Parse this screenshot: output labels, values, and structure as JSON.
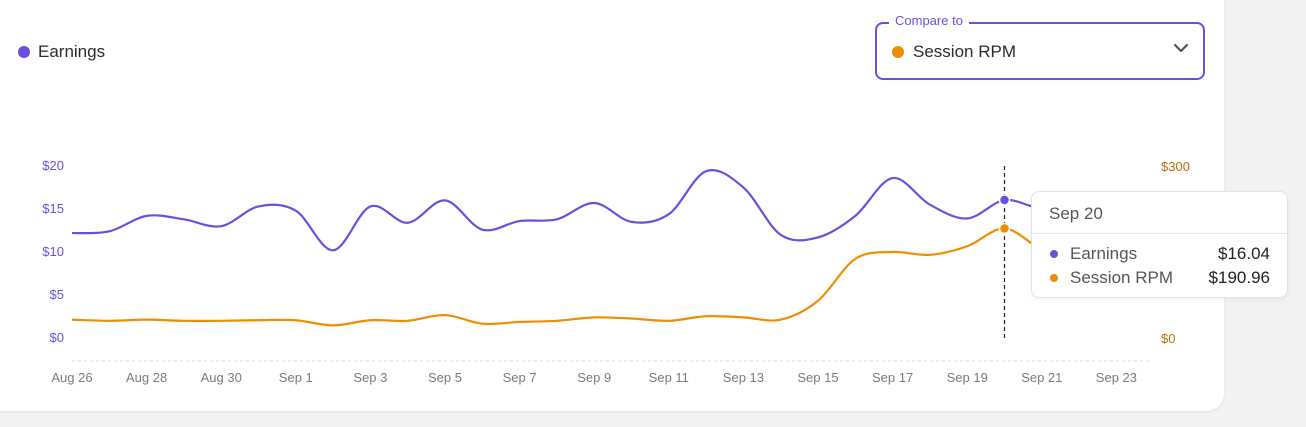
{
  "legend": {
    "label": "Earnings",
    "color": "#6c4ee0"
  },
  "compare": {
    "title": "Compare to",
    "selected": "Session RPM",
    "selected_color": "#f08c00",
    "icon": "chevron-down-icon"
  },
  "chart_data": {
    "type": "line",
    "x": [
      "Aug 26",
      "Aug 27",
      "Aug 28",
      "Aug 29",
      "Aug 30",
      "Aug 31",
      "Sep 1",
      "Sep 2",
      "Sep 3",
      "Sep 4",
      "Sep 5",
      "Sep 6",
      "Sep 7",
      "Sep 8",
      "Sep 9",
      "Sep 10",
      "Sep 11",
      "Sep 12",
      "Sep 13",
      "Sep 14",
      "Sep 15",
      "Sep 16",
      "Sep 17",
      "Sep 18",
      "Sep 19",
      "Sep 20",
      "Sep 21",
      "Sep 22"
    ],
    "x_tick_labels": [
      "Aug 26",
      "Aug 28",
      "Aug 30",
      "Sep 1",
      "Sep 3",
      "Sep 5",
      "Sep 7",
      "Sep 9",
      "Sep 11",
      "Sep 13",
      "Sep 15",
      "Sep 17",
      "Sep 19",
      "Sep 21",
      "Sep 23"
    ],
    "y_left": {
      "ticks": [
        "$0",
        "$5",
        "$10",
        "$15",
        "$20"
      ],
      "ylim": [
        0,
        20
      ],
      "color": "#6c4ee0"
    },
    "y_right": {
      "ticks": [
        "$0",
        "$300"
      ],
      "ylim": [
        0,
        300
      ],
      "color": "#b8700a"
    },
    "series": [
      {
        "name": "Earnings",
        "axis": "left",
        "color": "#6c4ee0",
        "values": [
          12.2,
          12.4,
          14.2,
          13.8,
          13.0,
          15.3,
          14.8,
          10.2,
          15.3,
          13.4,
          16.0,
          12.6,
          13.6,
          13.8,
          15.7,
          13.5,
          14.4,
          19.4,
          17.5,
          12.0,
          11.7,
          14.2,
          18.6,
          15.5,
          13.9,
          16.04,
          15.2,
          17.0
        ]
      },
      {
        "name": "Session RPM",
        "axis": "right",
        "color": "#f08c00",
        "values": [
          32,
          30,
          32,
          30,
          30,
          31,
          31,
          22,
          31,
          30,
          40,
          25,
          28,
          30,
          36,
          34,
          30,
          38,
          36,
          32,
          65,
          138,
          150,
          145,
          160,
          190.96,
          155,
          140
        ]
      }
    ],
    "hover_index": 25,
    "tooltip": {
      "title": "Sep 20",
      "rows": [
        {
          "name": "Earnings",
          "value": "$16.04",
          "color": "#6c4ee0"
        },
        {
          "name": "Session RPM",
          "value": "$190.96",
          "color": "#f08c00"
        }
      ]
    },
    "grid": false,
    "legend_position": "top-left"
  }
}
